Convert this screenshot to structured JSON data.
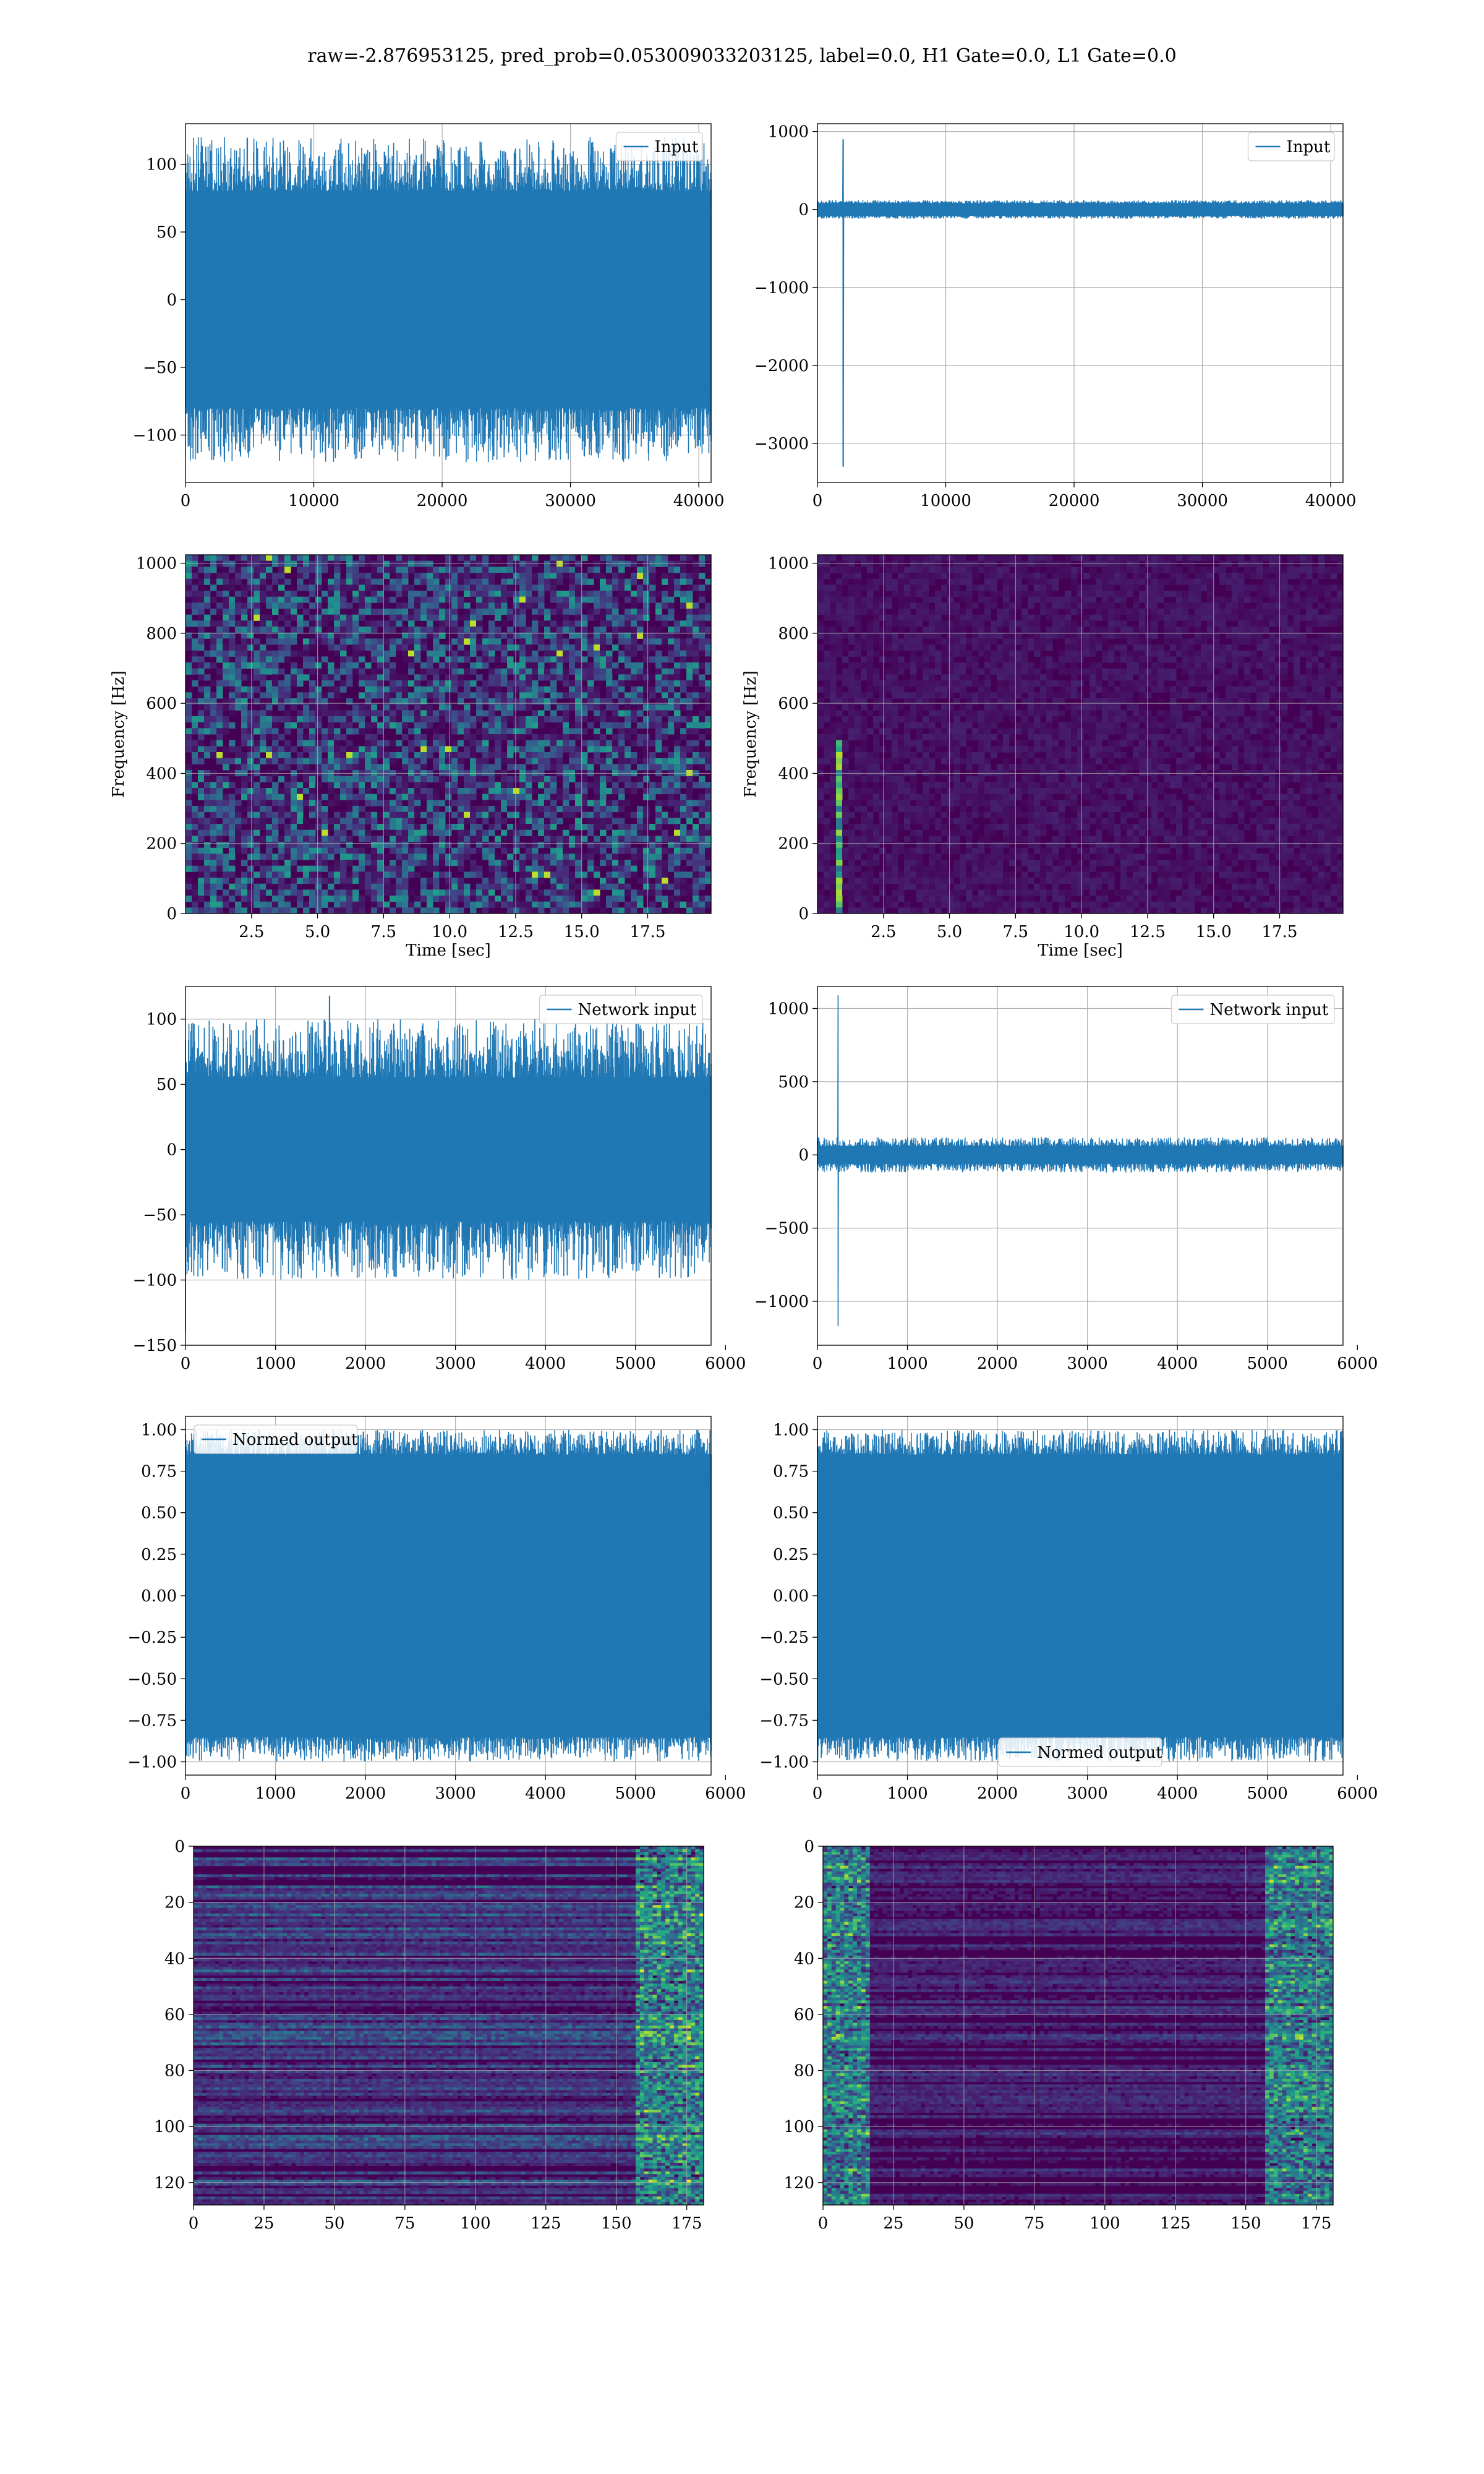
{
  "suptitle": "raw=-2.876953125, pred_prob=0.053009033203125, label=0.0, H1 Gate=0.0, L1 Gate=0.0",
  "colors": {
    "line": "#1f77b4",
    "grid": "#b0b0b0",
    "viridis_low": "#440154",
    "viridis_high": "#fde725"
  },
  "chart_data": [
    {
      "type": "line",
      "panel": "row1-left",
      "x_range": [
        0,
        40960
      ],
      "ylim": [
        -135,
        130
      ],
      "xticks": [
        "0",
        "10000",
        "20000",
        "30000",
        "40000"
      ],
      "yticks": [
        "100",
        "50",
        "0",
        "−50",
        "−100"
      ],
      "ytick_values": [
        100,
        50,
        0,
        -50,
        -100
      ],
      "xtick_values": [
        0,
        10000,
        20000,
        30000,
        40000
      ],
      "legend": {
        "label": "Input",
        "loc": "upper right"
      },
      "signal": {
        "kind": "noise",
        "amplitude": 120,
        "core": 80
      }
    },
    {
      "type": "line",
      "panel": "row1-right",
      "x_range": [
        0,
        40960
      ],
      "ylim": [
        -3500,
        1100
      ],
      "xticks": [
        "0",
        "10000",
        "20000",
        "30000",
        "40000"
      ],
      "yticks": [
        "1000",
        "0",
        "−1000",
        "−2000",
        "−3000"
      ],
      "ytick_values": [
        1000,
        0,
        -1000,
        -2000,
        -3000
      ],
      "xtick_values": [
        0,
        10000,
        20000,
        30000,
        40000
      ],
      "legend": {
        "label": "Input",
        "loc": "upper right"
      },
      "signal": {
        "kind": "glitch",
        "amplitude": 120,
        "core": 80,
        "glitch_x": 2000,
        "glitch_max": 900,
        "glitch_min": -3300
      }
    },
    {
      "type": "heatmap",
      "panel": "row2-left",
      "x_range": [
        0,
        19.9
      ],
      "ylim": [
        0,
        1024
      ],
      "xticks": [
        "2.5",
        "5.0",
        "7.5",
        "10.0",
        "12.5",
        "15.0",
        "17.5"
      ],
      "xtick_values": [
        2.5,
        5,
        7.5,
        10,
        12.5,
        15,
        17.5
      ],
      "yticks": [
        "1000",
        "800",
        "600",
        "400",
        "200",
        "0"
      ],
      "ytick_values": [
        1000,
        800,
        600,
        400,
        200,
        0
      ],
      "xlabel": "Time [sec]",
      "ylabel": "Frequency [Hz]",
      "colormap": "viridis",
      "texture": {
        "kind": "spectrogram-noise",
        "band_hz": 500
      }
    },
    {
      "type": "heatmap",
      "panel": "row2-right",
      "x_range": [
        0,
        19.9
      ],
      "ylim": [
        0,
        1024
      ],
      "xticks": [
        "2.5",
        "5.0",
        "7.5",
        "10.0",
        "12.5",
        "15.0",
        "17.5"
      ],
      "xtick_values": [
        2.5,
        5,
        7.5,
        10,
        12.5,
        15,
        17.5
      ],
      "yticks": [
        "1000",
        "800",
        "600",
        "400",
        "200",
        "0"
      ],
      "ytick_values": [
        1000,
        800,
        600,
        400,
        200,
        0
      ],
      "xlabel": "Time [sec]",
      "ylabel": "Frequency [Hz]",
      "colormap": "viridis",
      "texture": {
        "kind": "spectrogram-glitch",
        "glitch_time": 0.8
      }
    },
    {
      "type": "line",
      "panel": "row3-left",
      "x_range": [
        0,
        5840
      ],
      "ylim": [
        -150,
        125
      ],
      "xticks": [
        "0",
        "1000",
        "2000",
        "3000",
        "4000",
        "5000",
        "6000"
      ],
      "xtick_values": [
        0,
        1000,
        2000,
        3000,
        4000,
        5000,
        6000
      ],
      "yticks": [
        "100",
        "50",
        "0",
        "−50",
        "−100",
        "−150"
      ],
      "ytick_values": [
        100,
        50,
        0,
        -50,
        -100,
        -150
      ],
      "legend": {
        "label": "Network input",
        "loc": "upper right"
      },
      "signal": {
        "kind": "noise",
        "amplitude": 100,
        "core": 55,
        "start_spike": -140,
        "spike_x": 1600,
        "spike_max": 118
      }
    },
    {
      "type": "line",
      "panel": "row3-right",
      "x_range": [
        0,
        5840
      ],
      "ylim": [
        -1300,
        1150
      ],
      "xticks": [
        "0",
        "1000",
        "2000",
        "3000",
        "4000",
        "5000",
        "6000"
      ],
      "xtick_values": [
        0,
        1000,
        2000,
        3000,
        4000,
        5000,
        6000
      ],
      "yticks": [
        "1000",
        "500",
        "0",
        "−500",
        "−1000"
      ],
      "ytick_values": [
        1000,
        500,
        0,
        -500,
        -1000
      ],
      "legend": {
        "label": "Network input",
        "loc": "upper right"
      },
      "signal": {
        "kind": "glitch",
        "amplitude": 120,
        "core": 60,
        "glitch_x": 230,
        "glitch_max": 1090,
        "glitch_min": -1170
      }
    },
    {
      "type": "line",
      "panel": "row4-left",
      "x_range": [
        0,
        5840
      ],
      "ylim": [
        -1.08,
        1.08
      ],
      "xticks": [
        "0",
        "1000",
        "2000",
        "3000",
        "4000",
        "5000",
        "6000"
      ],
      "xtick_values": [
        0,
        1000,
        2000,
        3000,
        4000,
        5000,
        6000
      ],
      "yticks": [
        "1.00",
        "0.75",
        "0.50",
        "0.25",
        "0.00",
        "−0.25",
        "−0.50",
        "−0.75",
        "−1.00"
      ],
      "ytick_values": [
        1,
        0.75,
        0.5,
        0.25,
        0,
        -0.25,
        -0.5,
        -0.75,
        -1
      ],
      "legend": {
        "label": "Normed output",
        "loc": "upper left"
      },
      "signal": {
        "kind": "normed",
        "amplitude": 1.0,
        "core": 0.85
      }
    },
    {
      "type": "line",
      "panel": "row4-right",
      "x_range": [
        0,
        5840
      ],
      "ylim": [
        -1.08,
        1.08
      ],
      "xticks": [
        "0",
        "1000",
        "2000",
        "3000",
        "4000",
        "5000",
        "6000"
      ],
      "xtick_values": [
        0,
        1000,
        2000,
        3000,
        4000,
        5000,
        6000
      ],
      "yticks": [
        "1.00",
        "0.75",
        "0.50",
        "0.25",
        "0.00",
        "−0.25",
        "−0.50",
        "−0.75",
        "−1.00"
      ],
      "ytick_values": [
        1,
        0.75,
        0.5,
        0.25,
        0,
        -0.25,
        -0.5,
        -0.75,
        -1
      ],
      "legend": {
        "label": "Normed output",
        "loc": "lower center"
      },
      "signal": {
        "kind": "normed",
        "amplitude": 1.0,
        "core": 0.85
      }
    },
    {
      "type": "heatmap",
      "panel": "row5-left",
      "x_range": [
        0,
        181
      ],
      "ylim": [
        128,
        0
      ],
      "xticks": [
        "0",
        "25",
        "50",
        "75",
        "100",
        "125",
        "150",
        "175"
      ],
      "xtick_values": [
        0,
        25,
        50,
        75,
        100,
        125,
        150,
        175
      ],
      "yticks": [
        "0",
        "20",
        "40",
        "60",
        "80",
        "100",
        "120"
      ],
      "ytick_values": [
        0,
        20,
        40,
        60,
        80,
        100,
        120
      ],
      "colormap": "viridis",
      "texture": {
        "kind": "feature-rows-a"
      }
    },
    {
      "type": "heatmap",
      "panel": "row5-right",
      "x_range": [
        0,
        181
      ],
      "ylim": [
        128,
        0
      ],
      "xticks": [
        "0",
        "25",
        "50",
        "75",
        "100",
        "125",
        "150",
        "175"
      ],
      "xtick_values": [
        0,
        25,
        50,
        75,
        100,
        125,
        150,
        175
      ],
      "yticks": [
        "0",
        "20",
        "40",
        "60",
        "80",
        "100",
        "120"
      ],
      "ytick_values": [
        0,
        20,
        40,
        60,
        80,
        100,
        120
      ],
      "colormap": "viridis",
      "texture": {
        "kind": "feature-rows-b"
      }
    }
  ]
}
